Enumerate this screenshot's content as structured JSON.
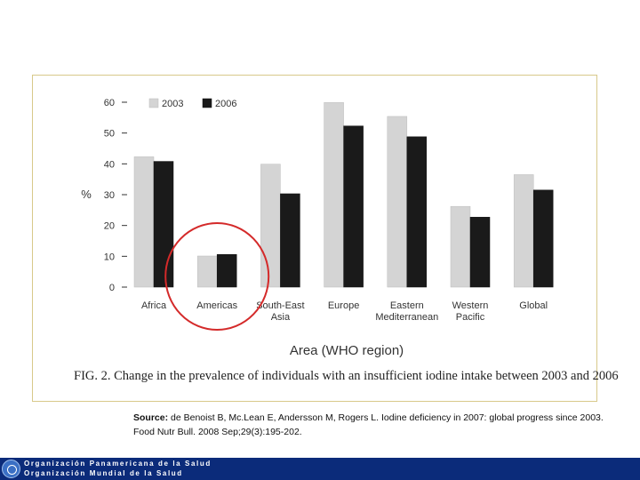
{
  "chart_data": {
    "type": "bar",
    "title": "",
    "xlabel": "Area (WHO region)",
    "ylabel": "%",
    "ylim": [
      0,
      60
    ],
    "yticks": [
      0,
      10,
      20,
      30,
      40,
      50,
      60
    ],
    "grid": false,
    "legend_position": "top-left",
    "categories": [
      "Africa",
      "Americas",
      "South-East Asia",
      "Europe",
      "Eastern Mediterranean",
      "Western Pacific",
      "Global"
    ],
    "category_lines": [
      [
        "Africa"
      ],
      [
        "Americas"
      ],
      [
        "South-East",
        "Asia"
      ],
      [
        "Europe"
      ],
      [
        "Eastern",
        "Mediterranean"
      ],
      [
        "Western",
        "Pacific"
      ],
      [
        "Global"
      ]
    ],
    "series": [
      {
        "name": "2003",
        "color": "#d4d4d4",
        "values": [
          42.3,
          10.1,
          39.9,
          59.9,
          55.4,
          26.2,
          36.5
        ]
      },
      {
        "name": "2006",
        "color": "#1a1a1a",
        "values": [
          40.8,
          10.6,
          30.3,
          52.3,
          48.8,
          22.7,
          31.5
        ]
      }
    ],
    "highlight": {
      "category": "Americas",
      "color": "#d42a2a"
    }
  },
  "caption": "FIG. 2. Change in the prevalence of individuals with an insufficient iodine intake between 2003 and 2006",
  "source": {
    "label": "Source:",
    "line1": "de Benoist B, Mc.Lean E, Andersson M, Rogers L. Iodine deficiency in 2007: global progress since 2003.",
    "line2": "Food Nutr Bull. 2008 Sep;29(3):195-202."
  },
  "footer": {
    "line1": "Organización Panamericana de la Salud",
    "line2": "Organización Mundial de la Salud",
    "bar_color": "#0b2b7a"
  }
}
